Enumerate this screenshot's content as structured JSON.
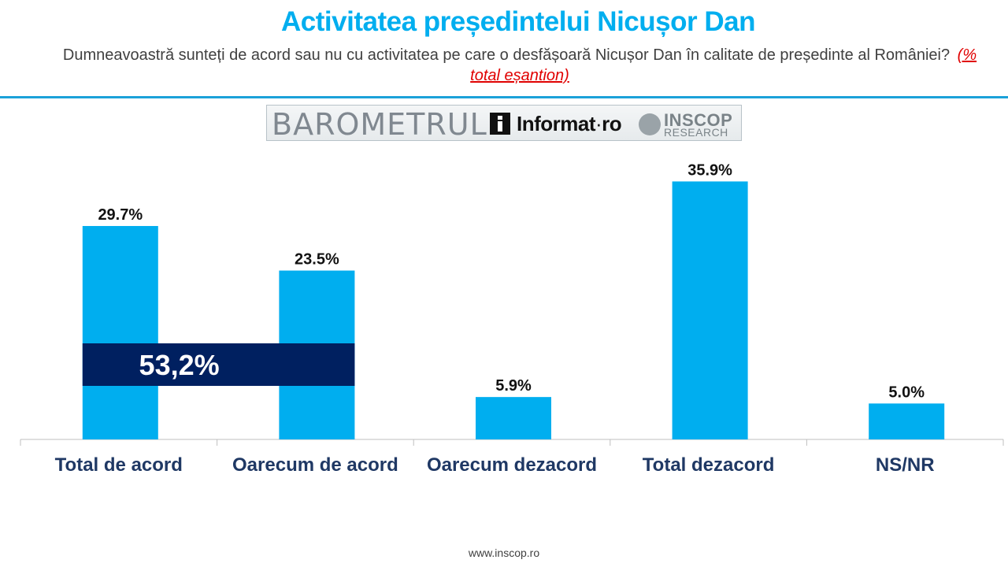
{
  "title": "Activitatea președintelui Nicușor Dan",
  "subtitle": "Dumneavoastră sunteți de acord sau nu cu activitatea pe care o desfășoară Nicușor Dan în calitate de președinte al României?",
  "subtitle_note": "(% total eșantion)",
  "logos": {
    "barometrul": "BAROMETRUL",
    "informat": "Informat",
    "informat_suffix": "ro",
    "inscop_top": "INSCOP",
    "inscop_bottom": "RESEARCH"
  },
  "footer": "www.inscop.ro",
  "colors": {
    "title": "#00AEEF",
    "bar": "#00AEEF",
    "highlight_box": "#002060",
    "axis_label": "#1F3864",
    "rule": "#1BA1D9",
    "note": "#E00000"
  },
  "chart_data": {
    "type": "bar",
    "categories": [
      "Total de acord",
      "Oarecum de acord",
      "Oarecum dezacord",
      "Total dezacord",
      "NS/NR"
    ],
    "values": [
      29.7,
      23.5,
      5.9,
      35.9,
      5.0
    ],
    "data_labels": [
      "29.7%",
      "23.5%",
      "5.9%",
      "35.9%",
      "5.0%"
    ],
    "ylim": [
      0,
      40
    ],
    "grid": false,
    "legend": "none",
    "annotation": {
      "text": "53,2%",
      "spans_categories": [
        "Total de acord",
        "Oarecum de acord"
      ]
    }
  }
}
